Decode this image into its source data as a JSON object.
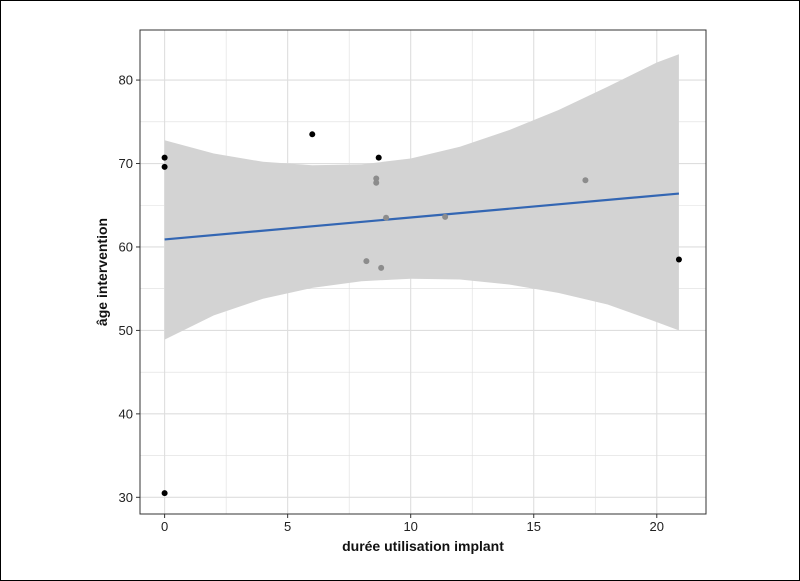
{
  "chart_data": {
    "type": "scatter",
    "title": "",
    "xlabel": "durée utilisation implant",
    "ylabel": "âge intervention",
    "xlim": [
      -1.0,
      22.0
    ],
    "ylim": [
      28.0,
      86.0
    ],
    "x_ticks": [
      0,
      5,
      10,
      15,
      20
    ],
    "y_ticks": [
      30,
      40,
      50,
      60,
      70,
      80
    ],
    "x_tick_labels": [
      "0",
      "5",
      "10",
      "15",
      "20"
    ],
    "y_tick_labels": [
      "30",
      "40",
      "50",
      "60",
      "70",
      "80"
    ],
    "grid": true,
    "legend": "none",
    "points": [
      {
        "x": 0.0,
        "y": 70.7,
        "color": "#000000"
      },
      {
        "x": 0.0,
        "y": 69.6,
        "color": "#000000"
      },
      {
        "x": 0.0,
        "y": 30.5,
        "color": "#000000"
      },
      {
        "x": 6.0,
        "y": 73.5,
        "color": "#000000"
      },
      {
        "x": 8.7,
        "y": 70.7,
        "color": "#000000"
      },
      {
        "x": 8.6,
        "y": 68.2,
        "color": "#8c8c8c"
      },
      {
        "x": 8.6,
        "y": 67.7,
        "color": "#8c8c8c"
      },
      {
        "x": 9.0,
        "y": 63.5,
        "color": "#8c8c8c"
      },
      {
        "x": 8.2,
        "y": 58.3,
        "color": "#8c8c8c"
      },
      {
        "x": 8.8,
        "y": 57.5,
        "color": "#8c8c8c"
      },
      {
        "x": 11.4,
        "y": 63.6,
        "color": "#8c8c8c"
      },
      {
        "x": 17.1,
        "y": 68.0,
        "color": "#8c8c8c"
      },
      {
        "x": 20.9,
        "y": 58.5,
        "color": "#000000"
      }
    ],
    "regression_line": {
      "x": [
        0.0,
        20.9
      ],
      "y": [
        60.9,
        66.4
      ],
      "color": "#3366b3"
    },
    "confidence_band": {
      "color": "#d3d3d3",
      "x": [
        0,
        2,
        4,
        6,
        8,
        10,
        12,
        14,
        16,
        18,
        20,
        20.9
      ],
      "upper": [
        72.8,
        71.2,
        70.2,
        69.8,
        69.9,
        70.6,
        72.0,
        74.0,
        76.4,
        79.2,
        82.1,
        83.1
      ],
      "lower": [
        48.9,
        51.8,
        53.8,
        55.1,
        55.9,
        56.2,
        56.1,
        55.5,
        54.5,
        53.1,
        51.0,
        50.0
      ]
    },
    "colors": {
      "panel_border": "#333333",
      "grid": "#dedede",
      "point_dark": "#000000",
      "point_light": "#8c8c8c"
    }
  }
}
